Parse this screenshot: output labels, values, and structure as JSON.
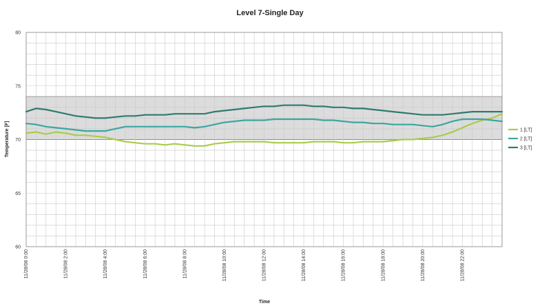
{
  "chart_data": {
    "type": "line",
    "title": "Level 7-Single Day",
    "xlabel": "Time",
    "ylabel": "Temperature [F]",
    "ylim": [
      60,
      80
    ],
    "yticks": [
      "80",
      "75",
      "70",
      "65",
      "60"
    ],
    "xlim": [
      0,
      24
    ],
    "grid": true,
    "legend_position": "right",
    "band": {
      "y_min": 70,
      "y_max": 74
    },
    "xticks": [
      {
        "x": 0,
        "label": "11/28/08 0:00"
      },
      {
        "x": 2,
        "label": "11/28/08 2:00"
      },
      {
        "x": 4,
        "label": "11/28/08 4:00"
      },
      {
        "x": 6,
        "label": "11/28/08 6:00"
      },
      {
        "x": 8,
        "label": "11/28/08 8:00"
      },
      {
        "x": 10,
        "label": "11/28/08 10:00"
      },
      {
        "x": 12,
        "label": "11/28/08 12:00"
      },
      {
        "x": 14,
        "label": "11/28/08 14:00"
      },
      {
        "x": 16,
        "label": "11/28/08 16:00"
      },
      {
        "x": 18,
        "label": "11/28/08 18:00"
      },
      {
        "x": 20,
        "label": "11/28/08 20:00"
      },
      {
        "x": 22,
        "label": "11/28/08 22:00"
      }
    ],
    "series": [
      {
        "name": "1 [LT]",
        "color": "#a8cc4a",
        "x": [
          0,
          0.5,
          1,
          1.5,
          2,
          2.5,
          3,
          3.5,
          4,
          4.5,
          5,
          5.5,
          6,
          6.5,
          7,
          7.5,
          8,
          8.5,
          9,
          9.5,
          10,
          10.5,
          11,
          11.5,
          12,
          12.5,
          13,
          13.5,
          14,
          14.5,
          15,
          15.5,
          16,
          16.5,
          17,
          17.5,
          18,
          18.5,
          19,
          19.5,
          20,
          20.5,
          21,
          21.5,
          22,
          22.5,
          23,
          23.5,
          24
        ],
        "y": [
          70.6,
          70.7,
          70.5,
          70.7,
          70.6,
          70.4,
          70.4,
          70.3,
          70.2,
          70.0,
          69.8,
          69.7,
          69.6,
          69.6,
          69.5,
          69.6,
          69.5,
          69.4,
          69.4,
          69.6,
          69.7,
          69.8,
          69.8,
          69.8,
          69.8,
          69.7,
          69.7,
          69.7,
          69.7,
          69.8,
          69.8,
          69.8,
          69.7,
          69.7,
          69.8,
          69.8,
          69.8,
          69.9,
          70.0,
          70.0,
          70.1,
          70.2,
          70.4,
          70.7,
          71.1,
          71.5,
          71.8,
          72.0,
          72.4
        ]
      },
      {
        "name": "2 [LT]",
        "color": "#3aa6a0",
        "x": [
          0,
          0.5,
          1,
          1.5,
          2,
          2.5,
          3,
          3.5,
          4,
          4.5,
          5,
          5.5,
          6,
          6.5,
          7,
          7.5,
          8,
          8.5,
          9,
          9.5,
          10,
          10.5,
          11,
          11.5,
          12,
          12.5,
          13,
          13.5,
          14,
          14.5,
          15,
          15.5,
          16,
          16.5,
          17,
          17.5,
          18,
          18.5,
          19,
          19.5,
          20,
          20.5,
          21,
          21.5,
          22,
          22.5,
          23,
          23.5,
          24
        ],
        "y": [
          71.5,
          71.4,
          71.2,
          71.1,
          71.0,
          70.9,
          70.8,
          70.8,
          70.8,
          71.0,
          71.2,
          71.2,
          71.2,
          71.2,
          71.2,
          71.2,
          71.2,
          71.1,
          71.2,
          71.4,
          71.6,
          71.7,
          71.8,
          71.8,
          71.8,
          71.9,
          71.9,
          71.9,
          71.9,
          71.9,
          71.8,
          71.8,
          71.7,
          71.6,
          71.6,
          71.5,
          71.5,
          71.4,
          71.4,
          71.4,
          71.3,
          71.2,
          71.4,
          71.7,
          71.9,
          71.9,
          71.9,
          71.8,
          71.7
        ]
      },
      {
        "name": "3 [LT]",
        "color": "#2e7a6e",
        "x": [
          0,
          0.5,
          1,
          1.5,
          2,
          2.5,
          3,
          3.5,
          4,
          4.5,
          5,
          5.5,
          6,
          6.5,
          7,
          7.5,
          8,
          8.5,
          9,
          9.5,
          10,
          10.5,
          11,
          11.5,
          12,
          12.5,
          13,
          13.5,
          14,
          14.5,
          15,
          15.5,
          16,
          16.5,
          17,
          17.5,
          18,
          18.5,
          19,
          19.5,
          20,
          20.5,
          21,
          21.5,
          22,
          22.5,
          23,
          23.5,
          24
        ],
        "y": [
          72.6,
          72.9,
          72.8,
          72.6,
          72.4,
          72.2,
          72.1,
          72.0,
          72.0,
          72.1,
          72.2,
          72.2,
          72.3,
          72.3,
          72.3,
          72.4,
          72.4,
          72.4,
          72.4,
          72.6,
          72.7,
          72.8,
          72.9,
          73.0,
          73.1,
          73.1,
          73.2,
          73.2,
          73.2,
          73.1,
          73.1,
          73.0,
          73.0,
          72.9,
          72.9,
          72.8,
          72.7,
          72.6,
          72.5,
          72.4,
          72.3,
          72.3,
          72.3,
          72.4,
          72.5,
          72.6,
          72.6,
          72.6,
          72.6
        ]
      }
    ]
  }
}
